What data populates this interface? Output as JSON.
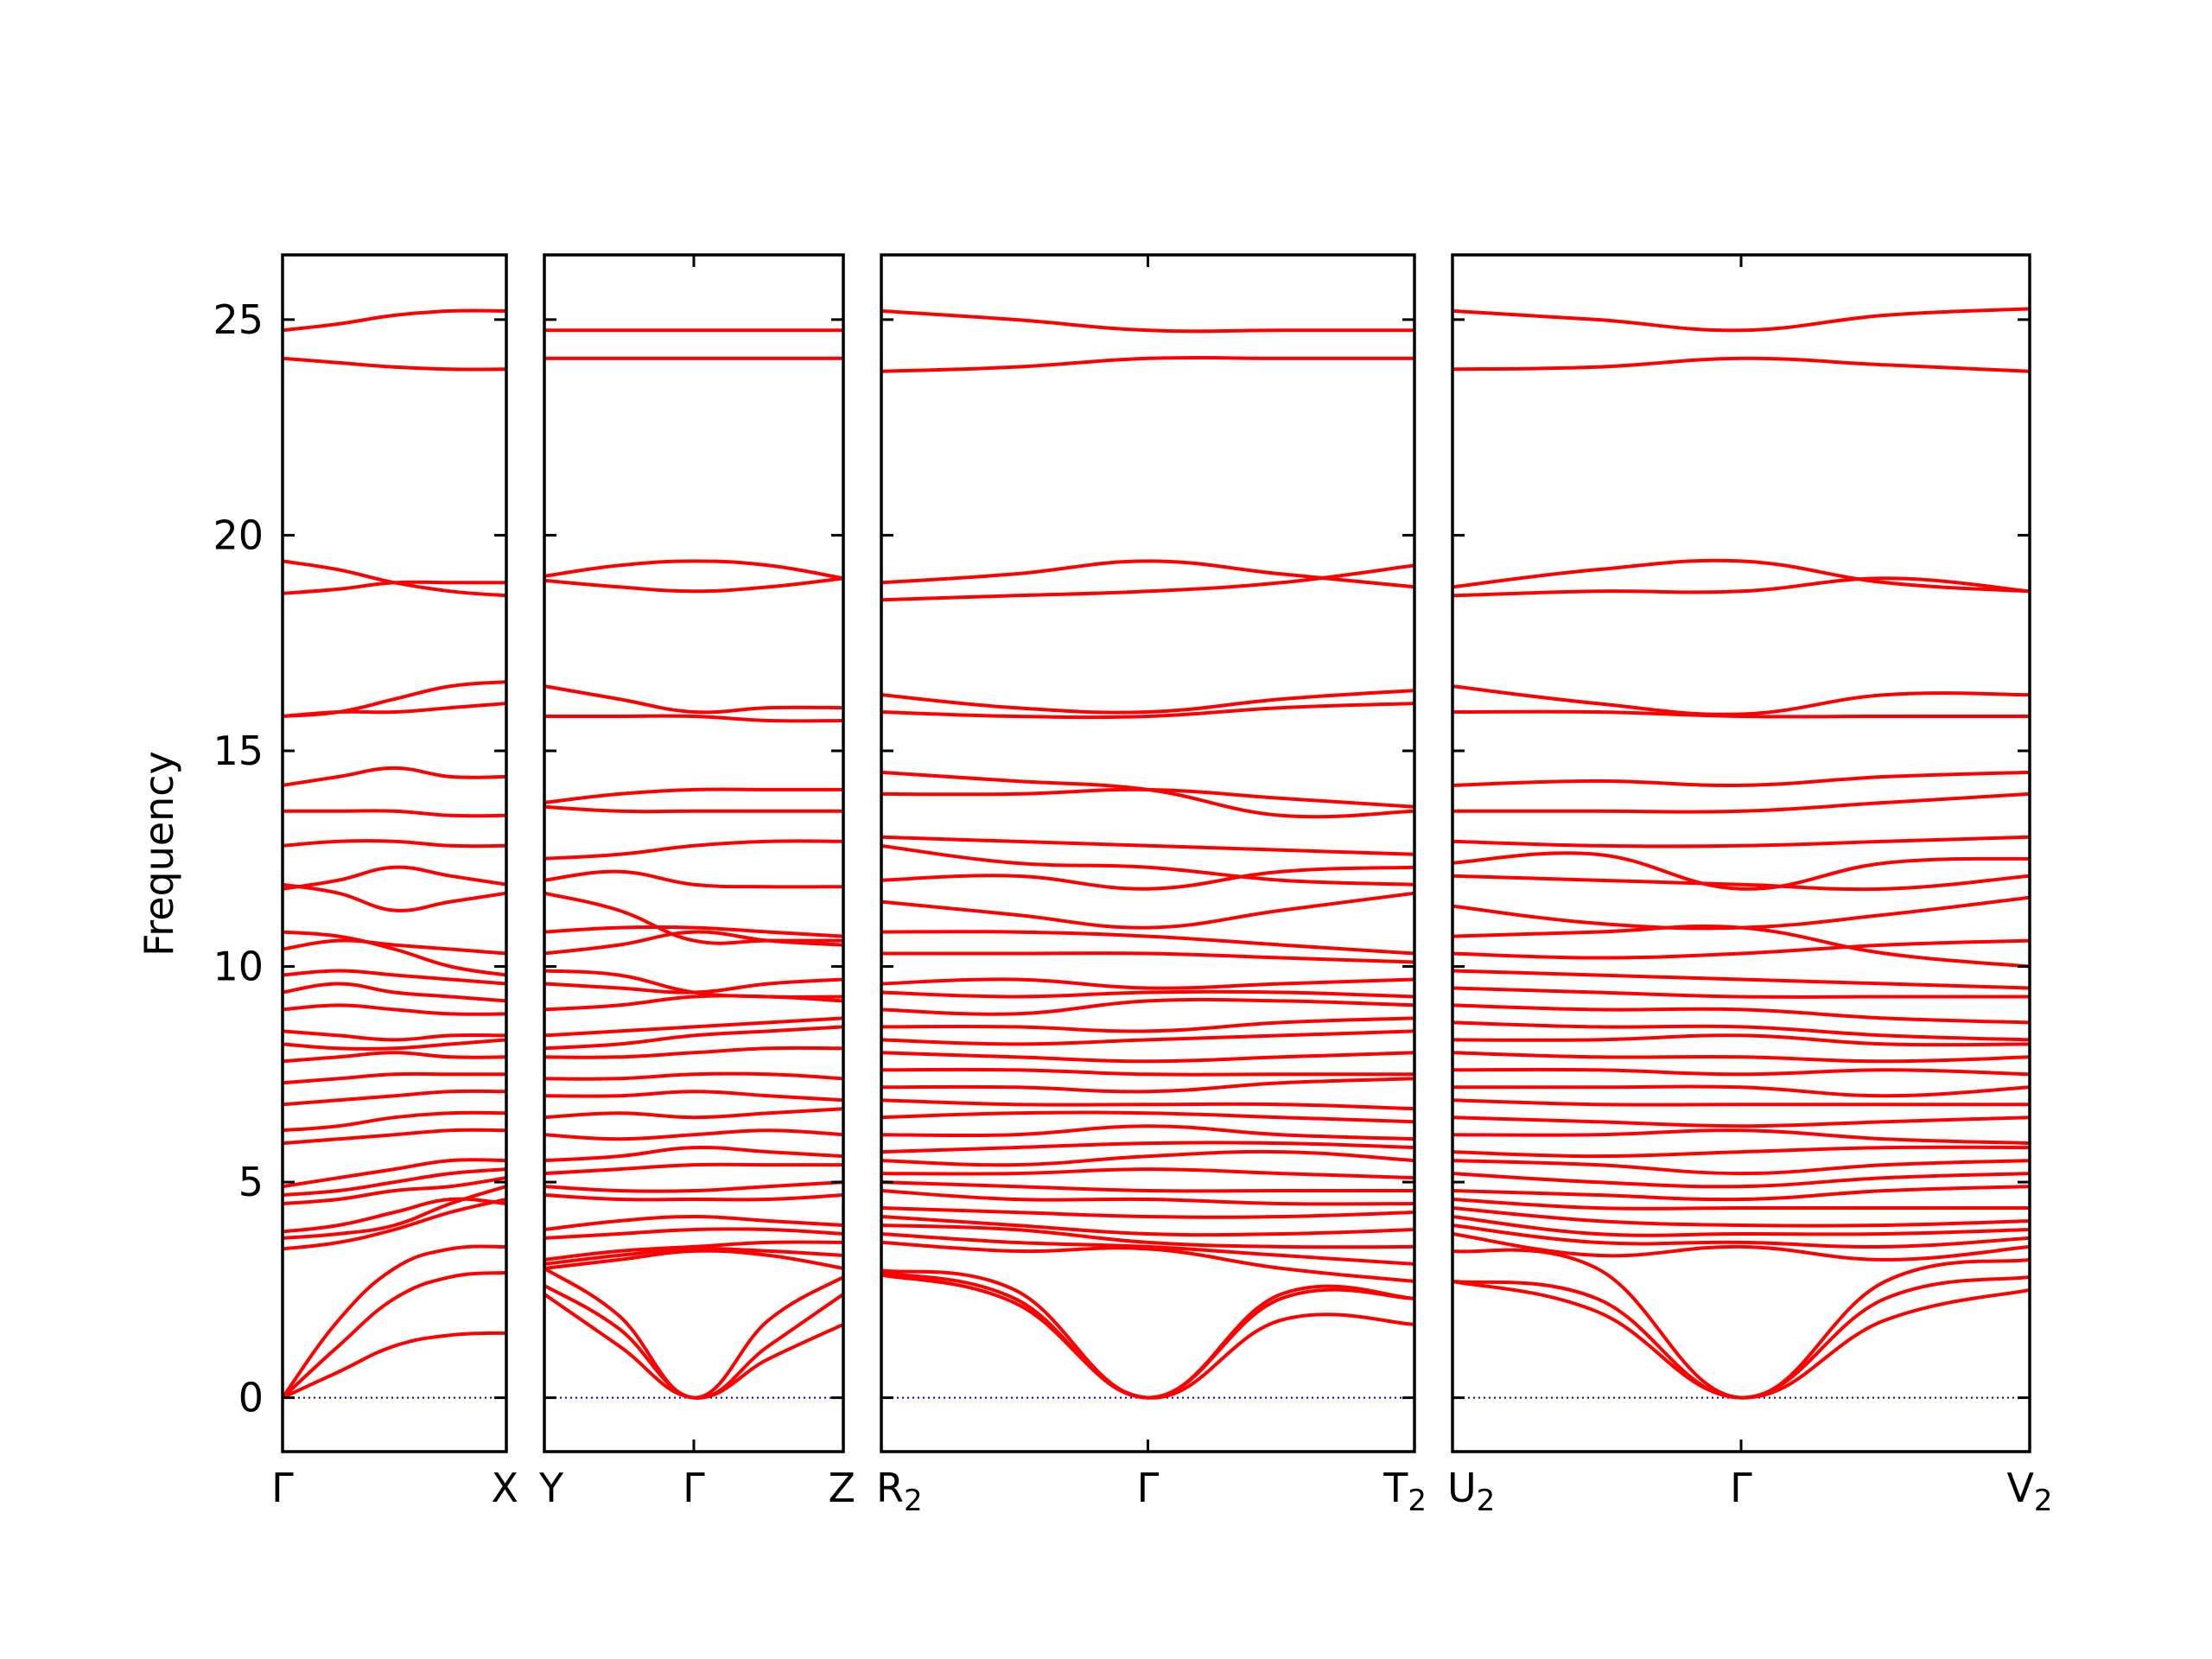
{
  "chart_data": {
    "type": "line",
    "title": "",
    "xlabel": "",
    "ylabel": "Frequency",
    "ylim": [
      -1.25,
      26.5
    ],
    "yticks": [
      0,
      5,
      10,
      15,
      20,
      25
    ],
    "grid": false,
    "legend": "none",
    "colors": {
      "bands": "#ff0000",
      "zero_line": "#0000cc",
      "axes": "#000000"
    },
    "segments": [
      {
        "x": [
          0,
          1
        ],
        "xtick_labels": [
          {
            "main": "Γ",
            "sub": ""
          },
          {
            "main": "X",
            "sub": ""
          }
        ],
        "bands": [
          [
            0,
            0.6,
            1.2,
            1.45,
            1.5
          ],
          [
            0,
            1.2,
            2.3,
            2.8,
            2.9
          ],
          [
            0,
            1.8,
            3.0,
            3.45,
            3.5
          ],
          [
            3.45,
            3.6,
            3.9,
            4.3,
            4.6
          ],
          [
            3.7,
            3.8,
            4.0,
            4.5,
            4.9
          ],
          [
            3.85,
            4.0,
            4.3,
            4.6,
            4.5
          ],
          [
            4.5,
            4.6,
            4.8,
            4.9,
            5.1
          ],
          [
            4.7,
            4.8,
            5.0,
            5.2,
            5.3
          ],
          [
            4.9,
            5.1,
            5.3,
            5.5,
            5.5
          ],
          [
            5.9,
            6.0,
            6.1,
            6.2,
            6.2
          ],
          [
            6.2,
            6.3,
            6.5,
            6.6,
            6.6
          ],
          [
            6.8,
            6.9,
            7.0,
            7.1,
            7.1
          ],
          [
            7.3,
            7.4,
            7.5,
            7.5,
            7.5
          ],
          [
            7.8,
            7.9,
            8.0,
            7.9,
            7.9
          ],
          [
            8.2,
            8.1,
            8.1,
            8.2,
            8.3
          ],
          [
            8.5,
            8.4,
            8.3,
            8.4,
            8.4
          ],
          [
            9.0,
            9.1,
            9.0,
            8.9,
            8.9
          ],
          [
            9.4,
            9.6,
            9.4,
            9.3,
            9.2
          ],
          [
            9.8,
            9.9,
            9.8,
            9.7,
            9.6
          ],
          [
            10.4,
            10.6,
            10.5,
            10.4,
            10.3
          ],
          [
            10.8,
            10.7,
            10.4,
            10.0,
            9.8
          ],
          [
            11.9,
            11.7,
            11.3,
            11.5,
            11.7
          ],
          [
            11.8,
            12.0,
            12.3,
            12.1,
            11.9
          ],
          [
            12.8,
            12.9,
            12.9,
            12.8,
            12.8
          ],
          [
            13.6,
            13.6,
            13.6,
            13.5,
            13.5
          ],
          [
            14.2,
            14.4,
            14.6,
            14.4,
            14.4
          ],
          [
            15.8,
            15.9,
            16.2,
            16.5,
            16.6
          ],
          [
            15.8,
            15.9,
            15.9,
            16.0,
            16.1
          ],
          [
            18.65,
            18.75,
            18.9,
            18.9,
            18.9
          ],
          [
            19.4,
            19.2,
            18.9,
            18.7,
            18.6
          ],
          [
            24.1,
            24.0,
            23.9,
            23.85,
            23.85
          ],
          [
            24.75,
            24.9,
            25.1,
            25.2,
            25.2
          ]
        ]
      },
      {
        "x": [
          0,
          1
        ],
        "xtick_labels": [
          {
            "main": "Y",
            "sub": ""
          },
          {
            "main": "Γ",
            "sub": ""
          },
          {
            "main": "Z",
            "sub": ""
          }
        ],
        "bands": [
          [
            2.4,
            1.2,
            0,
            0.9,
            1.7
          ],
          [
            2.6,
            1.6,
            0,
            1.2,
            2.4
          ],
          [
            3.0,
            1.9,
            0,
            1.8,
            2.8
          ],
          [
            3.0,
            3.2,
            3.4,
            3.3,
            3.0
          ],
          [
            3.1,
            3.3,
            3.45,
            3.4,
            3.3
          ],
          [
            3.2,
            3.4,
            3.5,
            3.6,
            3.6
          ],
          [
            3.7,
            3.8,
            3.9,
            3.9,
            3.8
          ],
          [
            3.9,
            4.1,
            4.2,
            4.1,
            4.0
          ],
          [
            4.7,
            4.6,
            4.6,
            4.6,
            4.7
          ],
          [
            4.9,
            4.8,
            4.8,
            4.9,
            5.0
          ],
          [
            5.2,
            5.3,
            5.4,
            5.4,
            5.4
          ],
          [
            5.5,
            5.6,
            5.8,
            5.7,
            5.6
          ],
          [
            6.1,
            6.0,
            6.1,
            6.2,
            6.1
          ],
          [
            6.5,
            6.6,
            6.5,
            6.6,
            6.7
          ],
          [
            7.0,
            7.0,
            7.1,
            7.0,
            6.9
          ],
          [
            7.4,
            7.4,
            7.5,
            7.5,
            7.4
          ],
          [
            7.9,
            7.9,
            8.0,
            8.1,
            8.1
          ],
          [
            8.1,
            8.2,
            8.4,
            8.5,
            8.6
          ],
          [
            8.4,
            8.5,
            8.6,
            8.7,
            8.8
          ],
          [
            9.0,
            9.1,
            9.3,
            9.3,
            9.2
          ],
          [
            9.6,
            9.5,
            9.4,
            9.6,
            9.7
          ],
          [
            9.9,
            9.8,
            9.4,
            9.3,
            9.3
          ],
          [
            10.3,
            10.5,
            10.8,
            10.6,
            10.5
          ],
          [
            10.8,
            10.9,
            10.9,
            10.8,
            10.7
          ],
          [
            11.7,
            11.3,
            10.6,
            10.6,
            10.6
          ],
          [
            12.0,
            12.2,
            11.9,
            11.85,
            11.85
          ],
          [
            12.5,
            12.6,
            12.8,
            12.9,
            12.9
          ],
          [
            13.7,
            13.6,
            13.6,
            13.6,
            13.6
          ],
          [
            13.8,
            14.0,
            14.1,
            14.1,
            14.1
          ],
          [
            15.8,
            15.8,
            15.8,
            15.7,
            15.7
          ],
          [
            16.5,
            16.2,
            15.9,
            16.0,
            16.0
          ],
          [
            18.95,
            18.8,
            18.7,
            18.8,
            19.0
          ],
          [
            19.05,
            19.3,
            19.4,
            19.3,
            19.0
          ],
          [
            24.1,
            24.1,
            24.1,
            24.1,
            24.1
          ],
          [
            24.75,
            24.75,
            24.75,
            24.75,
            24.75
          ]
        ]
      },
      {
        "x": [
          0,
          1
        ],
        "xtick_labels": [
          {
            "main": "R",
            "sub": "2"
          },
          {
            "main": "Γ",
            "sub": ""
          },
          {
            "main": "T",
            "sub": "2"
          }
        ],
        "bands": [
          [
            2.85,
            2.2,
            0,
            1.8,
            1.7
          ],
          [
            2.9,
            2.3,
            0,
            2.3,
            2.3
          ],
          [
            2.95,
            2.5,
            0,
            2.4,
            2.3
          ],
          [
            3.6,
            3.4,
            3.45,
            3.0,
            2.7
          ],
          [
            3.8,
            3.6,
            3.5,
            3.3,
            3.1
          ],
          [
            4.0,
            3.9,
            3.6,
            3.5,
            3.5
          ],
          [
            4.2,
            4.0,
            3.8,
            3.8,
            3.9
          ],
          [
            4.4,
            4.3,
            4.2,
            4.2,
            4.3
          ],
          [
            4.8,
            4.6,
            4.6,
            4.5,
            4.5
          ],
          [
            5.0,
            4.9,
            4.8,
            4.8,
            4.8
          ],
          [
            5.2,
            5.2,
            5.3,
            5.2,
            5.1
          ],
          [
            5.5,
            5.4,
            5.6,
            5.7,
            5.5
          ],
          [
            5.7,
            5.8,
            5.9,
            5.9,
            5.8
          ],
          [
            6.1,
            6.1,
            6.3,
            6.1,
            6.0
          ],
          [
            6.5,
            6.6,
            6.6,
            6.5,
            6.4
          ],
          [
            6.9,
            6.8,
            6.8,
            6.8,
            6.7
          ],
          [
            7.2,
            7.2,
            7.1,
            7.3,
            7.4
          ],
          [
            7.6,
            7.6,
            7.5,
            7.5,
            7.5
          ],
          [
            8.0,
            7.9,
            7.8,
            7.9,
            8.0
          ],
          [
            8.3,
            8.2,
            8.3,
            8.4,
            8.5
          ],
          [
            8.6,
            8.6,
            8.5,
            8.7,
            8.8
          ],
          [
            9.0,
            8.9,
            9.2,
            9.2,
            9.1
          ],
          [
            9.4,
            9.3,
            9.4,
            9.4,
            9.3
          ],
          [
            9.6,
            9.7,
            9.5,
            9.6,
            9.7
          ],
          [
            10.3,
            10.3,
            10.3,
            10.2,
            10.1
          ],
          [
            10.8,
            10.8,
            10.7,
            10.5,
            10.3
          ],
          [
            11.5,
            11.2,
            10.9,
            11.3,
            11.7
          ],
          [
            12.0,
            12.1,
            11.8,
            12.2,
            12.3
          ],
          [
            12.8,
            12.4,
            12.3,
            12.0,
            11.9
          ],
          [
            13.0,
            12.9,
            12.8,
            12.7,
            12.6
          ],
          [
            14.0,
            14.0,
            14.1,
            13.9,
            13.7
          ],
          [
            14.5,
            14.3,
            14.1,
            13.5,
            13.6
          ],
          [
            15.9,
            15.8,
            15.8,
            16.0,
            16.1
          ],
          [
            16.3,
            16.0,
            15.9,
            16.2,
            16.4
          ],
          [
            18.5,
            18.6,
            18.7,
            18.9,
            19.3
          ],
          [
            18.9,
            19.1,
            19.4,
            19.1,
            18.8
          ],
          [
            23.8,
            23.9,
            24.1,
            24.1,
            24.1
          ],
          [
            25.2,
            25.0,
            24.75,
            24.75,
            24.75
          ]
        ]
      },
      {
        "x": [
          0,
          1
        ],
        "xtick_labels": [
          {
            "main": "U",
            "sub": "2"
          },
          {
            "main": "Γ",
            "sub": ""
          },
          {
            "main": "V",
            "sub": "2"
          }
        ],
        "bands": [
          [
            2.7,
            2.0,
            0,
            1.8,
            2.5
          ],
          [
            2.7,
            2.3,
            0,
            2.3,
            2.8
          ],
          [
            3.4,
            3.0,
            0,
            2.7,
            3.2
          ],
          [
            3.8,
            3.3,
            3.5,
            3.2,
            3.5
          ],
          [
            4.0,
            3.6,
            3.6,
            3.5,
            3.7
          ],
          [
            4.2,
            3.8,
            3.8,
            3.8,
            3.9
          ],
          [
            4.4,
            4.1,
            4.0,
            4.0,
            4.1
          ],
          [
            4.6,
            4.4,
            4.4,
            4.4,
            4.4
          ],
          [
            4.8,
            4.7,
            4.6,
            4.8,
            4.9
          ],
          [
            5.2,
            5.0,
            4.9,
            5.1,
            5.2
          ],
          [
            5.5,
            5.4,
            5.2,
            5.4,
            5.5
          ],
          [
            5.7,
            5.6,
            5.7,
            5.8,
            5.8
          ],
          [
            6.1,
            6.1,
            6.2,
            6.0,
            5.9
          ],
          [
            6.5,
            6.4,
            6.3,
            6.4,
            6.5
          ],
          [
            6.9,
            6.8,
            6.8,
            6.8,
            6.8
          ],
          [
            7.2,
            7.2,
            7.2,
            7.0,
            7.2
          ],
          [
            7.6,
            7.6,
            7.5,
            7.6,
            7.5
          ],
          [
            8.0,
            7.9,
            7.9,
            7.8,
            7.9
          ],
          [
            8.3,
            8.3,
            8.4,
            8.2,
            8.2
          ],
          [
            8.7,
            8.6,
            8.6,
            8.4,
            8.3
          ],
          [
            9.1,
            9.0,
            9.0,
            8.8,
            8.7
          ],
          [
            9.5,
            9.4,
            9.3,
            9.3,
            9.3
          ],
          [
            9.9,
            9.8,
            9.7,
            9.6,
            9.5
          ],
          [
            10.3,
            10.2,
            10.3,
            10.5,
            10.6
          ],
          [
            10.7,
            10.8,
            10.9,
            10.3,
            10.0
          ],
          [
            11.4,
            11.0,
            10.9,
            11.2,
            11.6
          ],
          [
            12.1,
            12.0,
            11.9,
            11.8,
            12.1
          ],
          [
            12.4,
            12.6,
            11.8,
            12.4,
            12.5
          ],
          [
            12.9,
            12.8,
            12.8,
            12.9,
            13.0
          ],
          [
            13.6,
            13.6,
            13.6,
            13.8,
            14.0
          ],
          [
            14.2,
            14.3,
            14.2,
            14.4,
            14.5
          ],
          [
            15.9,
            15.9,
            15.8,
            15.8,
            15.8
          ],
          [
            16.5,
            16.1,
            15.85,
            16.3,
            16.3
          ],
          [
            18.6,
            18.7,
            18.7,
            19.0,
            18.7
          ],
          [
            18.8,
            19.2,
            19.4,
            18.9,
            18.7
          ],
          [
            23.85,
            23.9,
            24.1,
            23.95,
            23.8
          ],
          [
            25.2,
            25.0,
            24.75,
            25.1,
            25.25
          ]
        ]
      }
    ]
  }
}
